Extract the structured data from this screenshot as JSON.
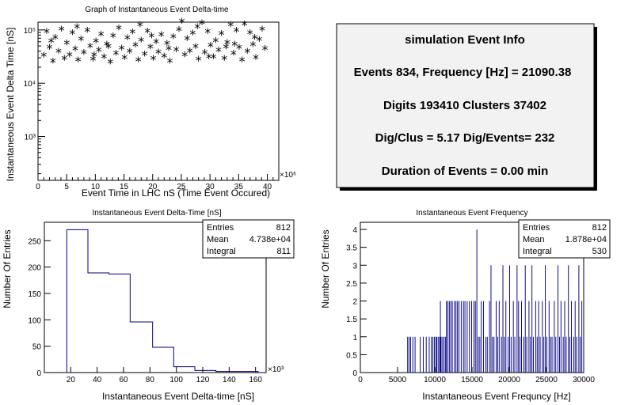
{
  "colors": {
    "hist": "#000080",
    "axis": "#000000",
    "info_bg": "#f2f2f2"
  },
  "info_box": {
    "title": "simulation Event Info",
    "line1": "Events 834, Frequency [Hz] = 21090.38",
    "line2": "Digits 193410 Clusters 37402",
    "line3": "Dig/Clus = 5.17 Dig/Events= 232",
    "line4": "Duration of Events = 0.00 min"
  },
  "chart_data": [
    {
      "type": "scatter",
      "title": "Graph of Instantaneous Event Delta-time",
      "xlabel": "Event Time in LHC nS (Time Event Occured)",
      "ylabel": "Instantaneous Event Delta Time [nS]",
      "x_multiplier": "×10⁶",
      "xlim": [
        0,
        42
      ],
      "ylim": [
        150,
        140000
      ],
      "ylog": true,
      "x_ticks": [
        0,
        5,
        10,
        15,
        20,
        25,
        30,
        35,
        40
      ],
      "y_ticks": [
        {
          "v": 1000,
          "label": "10³"
        },
        {
          "v": 10000,
          "label": "10⁴"
        },
        {
          "v": 100000,
          "label": "10⁵"
        }
      ],
      "marker": "*",
      "points": [
        [
          1.0,
          32000
        ],
        [
          1.5,
          90000
        ],
        [
          2.0,
          45000
        ],
        [
          2.6,
          25000
        ],
        [
          3.0,
          70000
        ],
        [
          3.6,
          38000
        ],
        [
          4.1,
          100000
        ],
        [
          4.6,
          28000
        ],
        [
          5.0,
          55000
        ],
        [
          5.5,
          33000
        ],
        [
          6.0,
          85000
        ],
        [
          6.5,
          42000
        ],
        [
          7.0,
          26000
        ],
        [
          7.5,
          65000
        ],
        [
          8.0,
          36000
        ],
        [
          8.6,
          95000
        ],
        [
          9.1,
          48000
        ],
        [
          9.6,
          27000
        ],
        [
          10.1,
          60000
        ],
        [
          10.6,
          40000
        ],
        [
          11.0,
          80000
        ],
        [
          11.5,
          30000
        ],
        [
          12.0,
          52000
        ],
        [
          12.6,
          24000
        ],
        [
          13.1,
          75000
        ],
        [
          13.6,
          35000
        ],
        [
          14.1,
          105000
        ],
        [
          14.6,
          44000
        ],
        [
          15.1,
          29000
        ],
        [
          15.6,
          68000
        ],
        [
          16.0,
          38000
        ],
        [
          16.5,
          88000
        ],
        [
          17.0,
          50000
        ],
        [
          17.5,
          26000
        ],
        [
          18.0,
          62000
        ],
        [
          18.6,
          34000
        ],
        [
          19.1,
          92000
        ],
        [
          19.6,
          46000
        ],
        [
          20.1,
          28000
        ],
        [
          20.6,
          58000
        ],
        [
          21.0,
          37000
        ],
        [
          21.5,
          78000
        ],
        [
          22.0,
          31000
        ],
        [
          22.5,
          54000
        ],
        [
          23.0,
          25000
        ],
        [
          23.6,
          72000
        ],
        [
          24.1,
          41000
        ],
        [
          24.6,
          98000
        ],
        [
          25.1,
          140000
        ],
        [
          25.6,
          33000
        ],
        [
          26.0,
          66000
        ],
        [
          26.5,
          39000
        ],
        [
          27.0,
          84000
        ],
        [
          27.5,
          47000
        ],
        [
          28.0,
          27000
        ],
        [
          28.6,
          130000
        ],
        [
          29.1,
          36000
        ],
        [
          29.6,
          90000
        ],
        [
          30.1,
          49000
        ],
        [
          30.6,
          30000
        ],
        [
          31.0,
          61000
        ],
        [
          31.5,
          40000
        ],
        [
          32.0,
          82000
        ],
        [
          32.5,
          28000
        ],
        [
          33.0,
          56000
        ],
        [
          33.6,
          120000
        ],
        [
          34.1,
          35000
        ],
        [
          34.6,
          94000
        ],
        [
          35.1,
          45000
        ],
        [
          35.6,
          26000
        ],
        [
          36.0,
          125000
        ],
        [
          36.5,
          38000
        ],
        [
          37.0,
          86000
        ],
        [
          37.5,
          51000
        ],
        [
          38.0,
          29000
        ],
        [
          38.6,
          64000
        ],
        [
          39.1,
          100000
        ],
        [
          39.6,
          43000
        ],
        [
          2.3,
          60000
        ],
        [
          6.8,
          110000
        ],
        [
          12.3,
          47000
        ],
        [
          17.8,
          120000
        ],
        [
          22.8,
          43000
        ],
        [
          27.8,
          110000
        ],
        [
          32.8,
          46000
        ],
        [
          37.8,
          70000
        ],
        [
          9.8,
          33000
        ],
        [
          19.8,
          75000
        ],
        [
          29.8,
          30000
        ],
        [
          34.3,
          52000
        ]
      ]
    },
    {
      "type": "histogram",
      "title": "Instantaneous Event Delta-Time [nS]",
      "xlabel": "Instantaneous Event Delta-time [nS]",
      "ylabel": "Number Of Entries",
      "x_multiplier": "×10³",
      "xlim": [
        0,
        168
      ],
      "ylim": [
        0,
        285
      ],
      "x_ticks": [
        20,
        40,
        60,
        80,
        100,
        120,
        140,
        160
      ],
      "y_ticks": [
        0,
        50,
        100,
        150,
        200,
        250
      ],
      "bins": [
        {
          "x0": 17,
          "x1": 33,
          "count": 271
        },
        {
          "x0": 33,
          "x1": 49,
          "count": 189
        },
        {
          "x0": 49,
          "x1": 65,
          "count": 187
        },
        {
          "x0": 65,
          "x1": 82,
          "count": 96
        },
        {
          "x0": 82,
          "x1": 98,
          "count": 48
        },
        {
          "x0": 98,
          "x1": 114,
          "count": 11
        },
        {
          "x0": 114,
          "x1": 130,
          "count": 4
        },
        {
          "x0": 130,
          "x1": 146,
          "count": 2
        },
        {
          "x0": 146,
          "x1": 162,
          "count": 2
        }
      ],
      "stats": {
        "entries_label": "Entries",
        "entries": "812",
        "mean_label": "Mean",
        "mean": "4.738e+04",
        "integral_label": "Integral",
        "integral": "811"
      }
    },
    {
      "type": "histogram",
      "title": "Instantaneous Event Frequency",
      "xlabel": "Instantaneous Event Frequncy [Hz]",
      "ylabel": "Number Of Entries",
      "xlim": [
        0,
        30000
      ],
      "ylim": [
        0,
        4.2
      ],
      "x_ticks": [
        0,
        5000,
        10000,
        15000,
        20000,
        25000,
        30000
      ],
      "y_ticks": [
        0,
        0.5,
        1,
        1.5,
        2,
        2.5,
        3,
        3.5,
        4
      ],
      "bin_width": 100,
      "bars": [
        [
          6300,
          1
        ],
        [
          6500,
          1
        ],
        [
          6700,
          1
        ],
        [
          7000,
          1
        ],
        [
          7300,
          1
        ],
        [
          8000,
          1
        ],
        [
          8400,
          1
        ],
        [
          8800,
          1
        ],
        [
          9200,
          1
        ],
        [
          9500,
          1
        ],
        [
          9700,
          1
        ],
        [
          9900,
          1
        ],
        [
          10100,
          1
        ],
        [
          10200,
          1
        ],
        [
          10400,
          1
        ],
        [
          10600,
          1
        ],
        [
          10800,
          1
        ],
        [
          11000,
          1
        ],
        [
          11200,
          1
        ],
        [
          11400,
          1
        ],
        [
          10700,
          2
        ],
        [
          11500,
          2
        ],
        [
          11700,
          2
        ],
        [
          11900,
          2
        ],
        [
          12100,
          2
        ],
        [
          12300,
          2
        ],
        [
          12600,
          2
        ],
        [
          12800,
          2
        ],
        [
          13000,
          2
        ],
        [
          13200,
          2
        ],
        [
          13500,
          2
        ],
        [
          13800,
          2
        ],
        [
          14000,
          2
        ],
        [
          14300,
          2
        ],
        [
          14600,
          2
        ],
        [
          14900,
          2
        ],
        [
          15600,
          4
        ],
        [
          15200,
          2
        ],
        [
          15400,
          2
        ],
        [
          15800,
          1
        ],
        [
          16000,
          1
        ],
        [
          16200,
          2
        ],
        [
          16500,
          2
        ],
        [
          16800,
          1
        ],
        [
          17000,
          1
        ],
        [
          17300,
          2
        ],
        [
          17500,
          3
        ],
        [
          17700,
          1
        ],
        [
          17900,
          1
        ],
        [
          18200,
          2
        ],
        [
          18400,
          1
        ],
        [
          18600,
          2
        ],
        [
          18900,
          1
        ],
        [
          19100,
          3
        ],
        [
          19300,
          1
        ],
        [
          19500,
          2
        ],
        [
          19800,
          1
        ],
        [
          20000,
          3
        ],
        [
          20200,
          1
        ],
        [
          20500,
          2
        ],
        [
          20700,
          1
        ],
        [
          21000,
          3
        ],
        [
          21200,
          2
        ],
        [
          21400,
          1
        ],
        [
          21600,
          2
        ],
        [
          21900,
          1
        ],
        [
          22100,
          3
        ],
        [
          22300,
          1
        ],
        [
          22600,
          2
        ],
        [
          22800,
          1
        ],
        [
          23000,
          3
        ],
        [
          23200,
          1
        ],
        [
          23500,
          2
        ],
        [
          23700,
          1
        ],
        [
          23900,
          2
        ],
        [
          24100,
          1
        ],
        [
          24400,
          2
        ],
        [
          24600,
          1
        ],
        [
          24800,
          3
        ],
        [
          25000,
          1
        ],
        [
          25300,
          2
        ],
        [
          25500,
          1
        ],
        [
          25700,
          1
        ],
        [
          26000,
          2
        ],
        [
          26200,
          1
        ],
        [
          26500,
          3
        ],
        [
          26700,
          1
        ],
        [
          26900,
          2
        ],
        [
          27200,
          1
        ],
        [
          27400,
          2
        ],
        [
          27600,
          1
        ],
        [
          27900,
          3
        ],
        [
          28100,
          1
        ],
        [
          28300,
          2
        ],
        [
          28600,
          1
        ],
        [
          28800,
          2
        ],
        [
          29000,
          1
        ],
        [
          29300,
          3
        ],
        [
          29500,
          1
        ],
        [
          29700,
          2
        ]
      ],
      "stats": {
        "entries_label": "Entries",
        "entries": "812",
        "mean_label": "Mean",
        "mean": "1.878e+04",
        "integral_label": "Integral",
        "integral": "530"
      }
    }
  ]
}
